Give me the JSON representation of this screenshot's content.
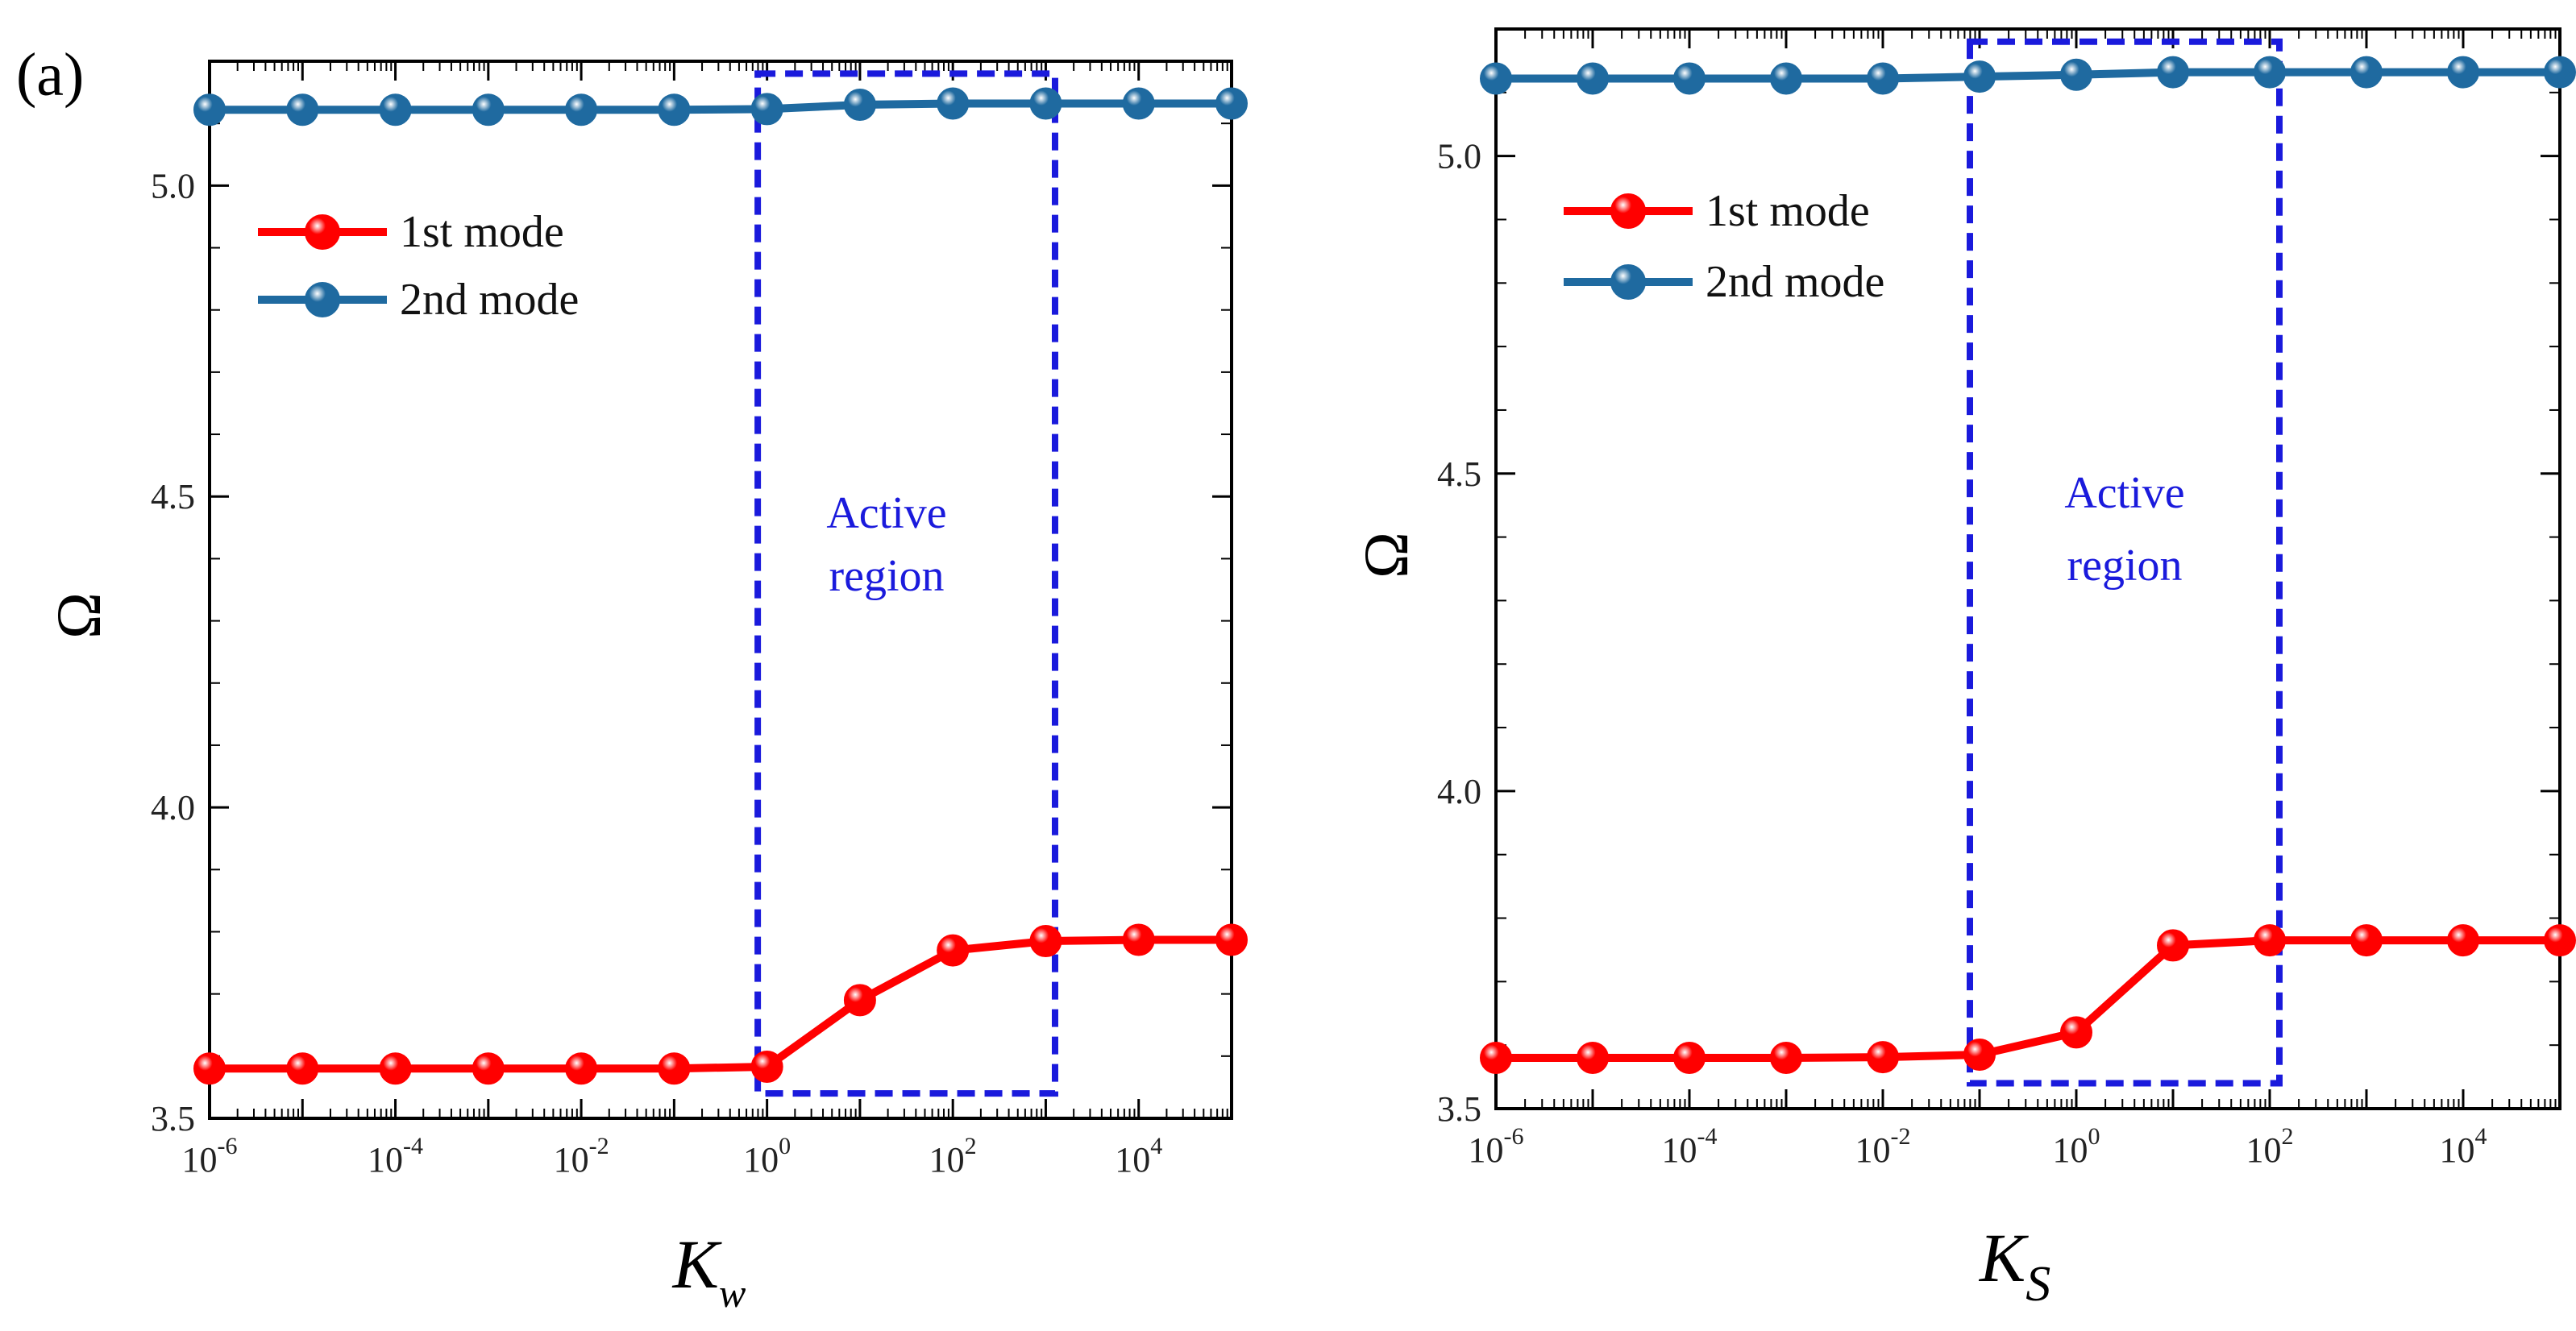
{
  "panel_label": "(a)",
  "colors": {
    "mode1": "#ff0000",
    "mode2": "#1f6aa0",
    "region": "#1a1adc",
    "axis": "#000000"
  },
  "chart_data": [
    {
      "type": "line",
      "xlabel_main": "K",
      "xlabel_sub": "w",
      "ylabel": "Ω",
      "x_scale": "log10",
      "xlim_exp": [
        -6,
        5
      ],
      "ylim": [
        3.5,
        5.2
      ],
      "xticks_exp": [
        "-6",
        "-4",
        "-2",
        "0",
        "2",
        "4"
      ],
      "yticks": [
        "3.5",
        "4.0",
        "4.5",
        "5.0"
      ],
      "x_exp": [
        -6,
        -5,
        -4,
        -3,
        -2,
        -1,
        0,
        1,
        2,
        3,
        4,
        5
      ],
      "series": [
        {
          "name": "1st mode",
          "values": [
            3.58,
            3.58,
            3.58,
            3.58,
            3.58,
            3.58,
            3.583,
            3.69,
            3.77,
            3.785,
            3.787,
            3.787
          ]
        },
        {
          "name": "2nd mode",
          "values": [
            5.122,
            5.122,
            5.122,
            5.122,
            5.122,
            5.122,
            5.123,
            5.13,
            5.132,
            5.132,
            5.132,
            5.132
          ]
        }
      ],
      "legend_position": "top-left",
      "region": {
        "label_line1": "Active",
        "label_line2": "region",
        "x_exp": [
          -0.1,
          3.1
        ],
        "y": [
          3.54,
          5.18
        ]
      }
    },
    {
      "type": "line",
      "xlabel_main": "K",
      "xlabel_sub": "S",
      "ylabel": "Ω",
      "x_scale": "log10",
      "xlim_exp": [
        -6,
        5
      ],
      "ylim": [
        3.5,
        5.2
      ],
      "xticks_exp": [
        "-6",
        "-4",
        "-2",
        "0",
        "2",
        "4"
      ],
      "yticks": [
        "3.5",
        "4.0",
        "4.5",
        "5.0"
      ],
      "x_exp": [
        -6,
        -5,
        -4,
        -3,
        -2,
        -1,
        0,
        1,
        2,
        3,
        4,
        5
      ],
      "series": [
        {
          "name": "1st mode",
          "values": [
            3.58,
            3.58,
            3.58,
            3.58,
            3.581,
            3.585,
            3.62,
            3.757,
            3.765,
            3.765,
            3.765,
            3.765
          ]
        },
        {
          "name": "2nd mode",
          "values": [
            5.122,
            5.122,
            5.122,
            5.122,
            5.122,
            5.125,
            5.128,
            5.132,
            5.132,
            5.132,
            5.132,
            5.132
          ]
        }
      ],
      "legend_position": "top-left",
      "region": {
        "label_line1": "Active",
        "label_line2": "region",
        "x_exp": [
          -1.1,
          2.1
        ],
        "y": [
          3.54,
          5.18
        ]
      }
    }
  ]
}
